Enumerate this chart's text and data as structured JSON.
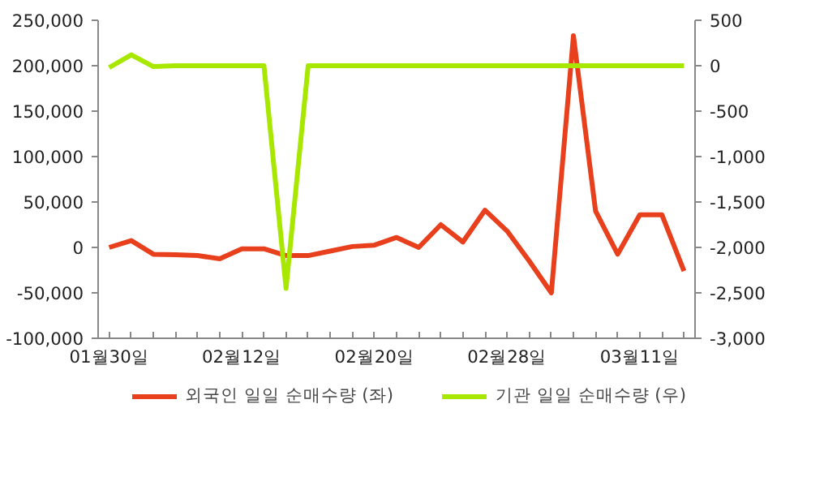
{
  "chart_data": {
    "type": "line",
    "categories": [
      "01월30일",
      null,
      null,
      null,
      null,
      null,
      "02월12일",
      null,
      null,
      null,
      null,
      null,
      "02월20일",
      null,
      null,
      null,
      null,
      null,
      "02월28일",
      null,
      null,
      null,
      null,
      null,
      "03월11일",
      null,
      null
    ],
    "series": [
      {
        "name": "외국인 일일 순매수량 (좌)",
        "color": "#e8401c",
        "values": [
          0,
          7500,
          -7500,
          -8000,
          -9000,
          -12500,
          -1500,
          -1500,
          -9000,
          -9000,
          -4000,
          1000,
          2500,
          11000,
          0,
          25000,
          6000,
          41000,
          18000,
          -15000,
          -50000,
          233000,
          40000,
          -7500,
          36000,
          36000,
          -26000
        ]
      },
      {
        "name": "기관 일일 순매수량 (우)",
        "color": "#a8e800",
        "axis": "y2",
        "values": [
          -20,
          120,
          -10,
          0,
          0,
          0,
          0,
          0,
          -2450,
          0,
          0,
          0,
          0,
          0,
          0,
          0,
          0,
          0,
          0,
          0,
          0,
          0,
          0,
          0,
          0,
          0,
          0
        ]
      }
    ],
    "ylim": [
      -100000,
      250000
    ],
    "yticks": [
      {
        "value": -100000,
        "label": "-100,000"
      },
      {
        "value": -50000,
        "label": "-50,000"
      },
      {
        "value": 0,
        "label": "0"
      },
      {
        "value": 50000,
        "label": "50,000"
      },
      {
        "value": 100000,
        "label": "100,000"
      },
      {
        "value": 150000,
        "label": "150,000"
      },
      {
        "value": 200000,
        "label": "200,000"
      },
      {
        "value": 250000,
        "label": "250,000"
      }
    ],
    "y2lim": [
      -3000,
      500
    ],
    "y2ticks": [
      {
        "value": -3000,
        "label": "-3,000"
      },
      {
        "value": -2500,
        "label": "-2,500"
      },
      {
        "value": -2000,
        "label": "-2,000"
      },
      {
        "value": -1500,
        "label": "-1,500"
      },
      {
        "value": -1000,
        "label": "-1,000"
      },
      {
        "value": -500,
        "label": "-500"
      },
      {
        "value": 0,
        "label": "0"
      },
      {
        "value": 500,
        "label": "500"
      }
    ],
    "grid": false,
    "legend": "bottom",
    "marker": "none",
    "line_style": "solid"
  }
}
